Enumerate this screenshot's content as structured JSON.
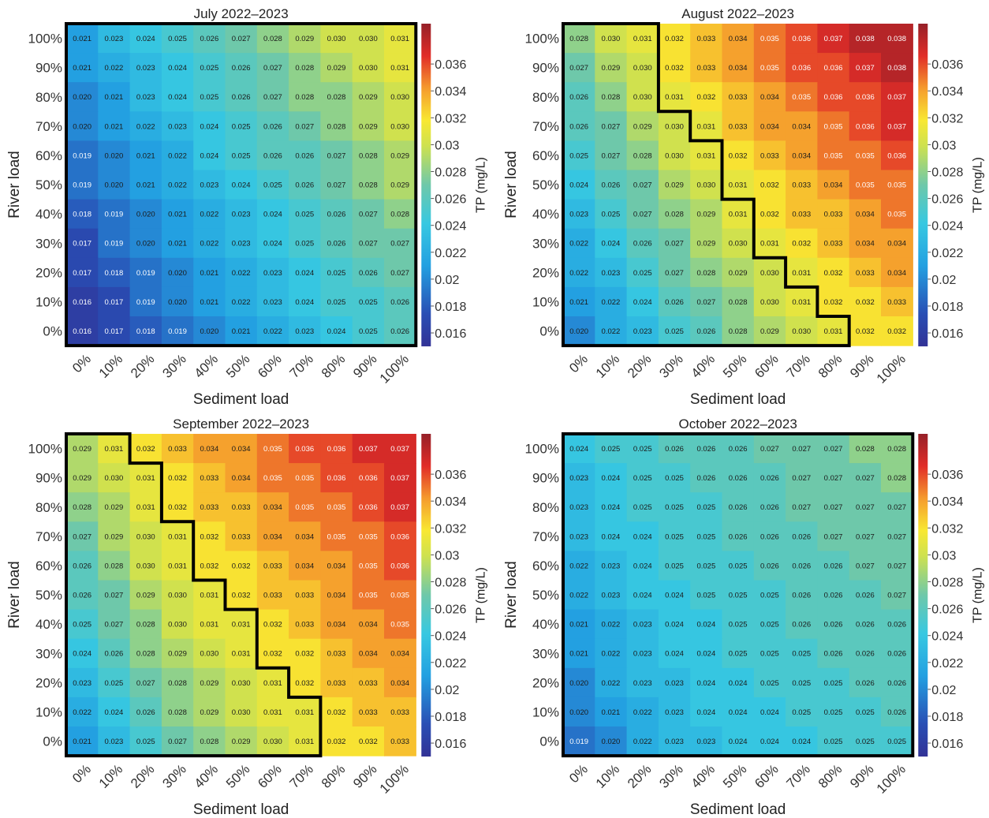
{
  "figure": {
    "colormap": "jet"
  },
  "chart_data": [
    {
      "type": "heatmap",
      "title": "July 2022–2023",
      "xlabel": "Sediment load",
      "ylabel": "River load",
      "colorbar_label": "TP (mg/L)",
      "colorbar_ticks": [
        "0.036",
        "0.034",
        "0.032",
        "0.03",
        "0.028",
        "0.026",
        "0.024",
        "0.022",
        "0.02",
        "0.018",
        "0.016"
      ],
      "colorbar_range": [
        0.015,
        0.039
      ],
      "x": [
        "0%",
        "10%",
        "20%",
        "30%",
        "40%",
        "50%",
        "60%",
        "70%",
        "80%",
        "90%",
        "100%"
      ],
      "y": [
        "100%",
        "90%",
        "80%",
        "70%",
        "60%",
        "50%",
        "40%",
        "30%",
        "20%",
        "10%",
        "0%"
      ],
      "values": [
        [
          "0.021",
          "0.023",
          "0.024",
          "0.025",
          "0.026",
          "0.027",
          "0.028",
          "0.029",
          "0.030",
          "0.030",
          "0.031"
        ],
        [
          "0.021",
          "0.022",
          "0.023",
          "0.024",
          "0.025",
          "0.026",
          "0.027",
          "0.028",
          "0.029",
          "0.030",
          "0.031"
        ],
        [
          "0.020",
          "0.021",
          "0.023",
          "0.024",
          "0.025",
          "0.026",
          "0.027",
          "0.028",
          "0.028",
          "0.029",
          "0.030"
        ],
        [
          "0.020",
          "0.021",
          "0.022",
          "0.023",
          "0.024",
          "0.025",
          "0.026",
          "0.027",
          "0.028",
          "0.029",
          "0.030"
        ],
        [
          "0.019",
          "0.020",
          "0.021",
          "0.022",
          "0.024",
          "0.025",
          "0.026",
          "0.026",
          "0.027",
          "0.028",
          "0.029"
        ],
        [
          "0.019",
          "0.020",
          "0.021",
          "0.022",
          "0.023",
          "0.024",
          "0.025",
          "0.026",
          "0.027",
          "0.028",
          "0.029"
        ],
        [
          "0.018",
          "0.019",
          "0.020",
          "0.021",
          "0.022",
          "0.023",
          "0.024",
          "0.025",
          "0.026",
          "0.027",
          "0.028"
        ],
        [
          "0.017",
          "0.019",
          "0.020",
          "0.021",
          "0.022",
          "0.023",
          "0.024",
          "0.025",
          "0.026",
          "0.027",
          "0.027"
        ],
        [
          "0.017",
          "0.018",
          "0.019",
          "0.020",
          "0.021",
          "0.022",
          "0.023",
          "0.024",
          "0.025",
          "0.026",
          "0.027"
        ],
        [
          "0.016",
          "0.017",
          "0.019",
          "0.020",
          "0.021",
          "0.022",
          "0.023",
          "0.024",
          "0.025",
          "0.025",
          "0.026"
        ],
        [
          "0.016",
          "0.017",
          "0.018",
          "0.019",
          "0.020",
          "0.021",
          "0.022",
          "0.023",
          "0.024",
          "0.025",
          "0.026"
        ]
      ],
      "outlined_columns_per_row": [
        11,
        11,
        11,
        11,
        11,
        11,
        11,
        11,
        11,
        11,
        11
      ]
    },
    {
      "type": "heatmap",
      "title": "August 2022–2023",
      "xlabel": "Sediment load",
      "ylabel": "River load",
      "colorbar_label": "TP (mg/L)",
      "colorbar_ticks": [
        "0.036",
        "0.034",
        "0.032",
        "0.03",
        "0.028",
        "0.026",
        "0.024",
        "0.022",
        "0.02",
        "0.018",
        "0.016"
      ],
      "colorbar_range": [
        0.015,
        0.039
      ],
      "x": [
        "0%",
        "10%",
        "20%",
        "30%",
        "40%",
        "50%",
        "60%",
        "70%",
        "80%",
        "90%",
        "100%"
      ],
      "y": [
        "100%",
        "90%",
        "80%",
        "70%",
        "60%",
        "50%",
        "40%",
        "30%",
        "20%",
        "10%",
        "0%"
      ],
      "values": [
        [
          "0.028",
          "0.030",
          "0.031",
          "0.032",
          "0.033",
          "0.034",
          "0.035",
          "0.036",
          "0.037",
          "0.038",
          "0.038"
        ],
        [
          "0.027",
          "0.029",
          "0.030",
          "0.032",
          "0.033",
          "0.034",
          "0.035",
          "0.036",
          "0.036",
          "0.037",
          "0.038"
        ],
        [
          "0.026",
          "0.028",
          "0.030",
          "0.031",
          "0.032",
          "0.033",
          "0.034",
          "0.035",
          "0.036",
          "0.036",
          "0.037"
        ],
        [
          "0.026",
          "0.027",
          "0.029",
          "0.030",
          "0.031",
          "0.033",
          "0.034",
          "0.034",
          "0.035",
          "0.036",
          "0.037"
        ],
        [
          "0.025",
          "0.027",
          "0.028",
          "0.030",
          "0.031",
          "0.032",
          "0.033",
          "0.034",
          "0.035",
          "0.035",
          "0.036"
        ],
        [
          "0.024",
          "0.026",
          "0.027",
          "0.029",
          "0.030",
          "0.031",
          "0.032",
          "0.033",
          "0.034",
          "0.035",
          "0.035"
        ],
        [
          "0.023",
          "0.025",
          "0.027",
          "0.028",
          "0.029",
          "0.031",
          "0.032",
          "0.033",
          "0.033",
          "0.034",
          "0.035"
        ],
        [
          "0.022",
          "0.024",
          "0.026",
          "0.027",
          "0.029",
          "0.030",
          "0.031",
          "0.032",
          "0.033",
          "0.034",
          "0.034"
        ],
        [
          "0.022",
          "0.023",
          "0.025",
          "0.027",
          "0.028",
          "0.029",
          "0.030",
          "0.031",
          "0.032",
          "0.033",
          "0.034"
        ],
        [
          "0.021",
          "0.022",
          "0.024",
          "0.026",
          "0.027",
          "0.028",
          "0.030",
          "0.031",
          "0.032",
          "0.032",
          "0.033"
        ],
        [
          "0.020",
          "0.022",
          "0.023",
          "0.025",
          "0.026",
          "0.028",
          "0.029",
          "0.030",
          "0.031",
          "0.032",
          "0.032"
        ]
      ],
      "outlined_columns_per_row": [
        3,
        3,
        3,
        4,
        5,
        5,
        6,
        6,
        7,
        8,
        9
      ]
    },
    {
      "type": "heatmap",
      "title": "September 2022–2023",
      "xlabel": "Sediment load",
      "ylabel": "River load",
      "colorbar_label": "TP (mg/L)",
      "colorbar_ticks": [
        "0.036",
        "0.034",
        "0.032",
        "0.03",
        "0.028",
        "0.026",
        "0.024",
        "0.022",
        "0.02",
        "0.018",
        "0.016"
      ],
      "colorbar_range": [
        0.015,
        0.039
      ],
      "x": [
        "0%",
        "10%",
        "20%",
        "30%",
        "40%",
        "50%",
        "60%",
        "70%",
        "80%",
        "90%",
        "100%"
      ],
      "y": [
        "100%",
        "90%",
        "80%",
        "70%",
        "60%",
        "50%",
        "40%",
        "30%",
        "20%",
        "10%",
        "0%"
      ],
      "values": [
        [
          "0.029",
          "0.031",
          "0.032",
          "0.033",
          "0.034",
          "0.034",
          "0.035",
          "0.036",
          "0.036",
          "0.037",
          "0.037"
        ],
        [
          "0.029",
          "0.030",
          "0.031",
          "0.032",
          "0.033",
          "0.034",
          "0.035",
          "0.035",
          "0.036",
          "0.036",
          "0.037"
        ],
        [
          "0.028",
          "0.029",
          "0.031",
          "0.032",
          "0.033",
          "0.033",
          "0.034",
          "0.035",
          "0.035",
          "0.036",
          "0.037"
        ],
        [
          "0.027",
          "0.029",
          "0.030",
          "0.031",
          "0.032",
          "0.033",
          "0.034",
          "0.034",
          "0.035",
          "0.035",
          "0.036"
        ],
        [
          "0.026",
          "0.028",
          "0.030",
          "0.031",
          "0.032",
          "0.032",
          "0.033",
          "0.034",
          "0.034",
          "0.035",
          "0.036"
        ],
        [
          "0.026",
          "0.027",
          "0.029",
          "0.030",
          "0.031",
          "0.032",
          "0.033",
          "0.033",
          "0.034",
          "0.035",
          "0.035"
        ],
        [
          "0.025",
          "0.027",
          "0.028",
          "0.030",
          "0.031",
          "0.031",
          "0.032",
          "0.033",
          "0.034",
          "0.034",
          "0.035"
        ],
        [
          "0.024",
          "0.026",
          "0.028",
          "0.029",
          "0.030",
          "0.031",
          "0.032",
          "0.032",
          "0.033",
          "0.034",
          "0.034"
        ],
        [
          "0.023",
          "0.025",
          "0.027",
          "0.028",
          "0.029",
          "0.030",
          "0.031",
          "0.032",
          "0.033",
          "0.033",
          "0.034"
        ],
        [
          "0.022",
          "0.024",
          "0.026",
          "0.028",
          "0.029",
          "0.030",
          "0.031",
          "0.031",
          "0.032",
          "0.033",
          "0.033"
        ],
        [
          "0.021",
          "0.023",
          "0.025",
          "0.027",
          "0.028",
          "0.029",
          "0.030",
          "0.031",
          "0.032",
          "0.032",
          "0.033"
        ]
      ],
      "outlined_columns_per_row": [
        2,
        3,
        3,
        4,
        4,
        5,
        6,
        6,
        7,
        8,
        8
      ]
    },
    {
      "type": "heatmap",
      "title": "October 2022–2023",
      "xlabel": "Sediment load",
      "ylabel": "River load",
      "colorbar_label": "TP (mg/L)",
      "colorbar_ticks": [
        "0.036",
        "0.034",
        "0.032",
        "0.03",
        "0.028",
        "0.026",
        "0.024",
        "0.022",
        "0.02",
        "0.018",
        "0.016"
      ],
      "colorbar_range": [
        0.015,
        0.039
      ],
      "x": [
        "0%",
        "10%",
        "20%",
        "30%",
        "40%",
        "50%",
        "60%",
        "70%",
        "80%",
        "90%",
        "100%"
      ],
      "y": [
        "100%",
        "90%",
        "80%",
        "70%",
        "60%",
        "50%",
        "40%",
        "30%",
        "20%",
        "10%",
        "0%"
      ],
      "values": [
        [
          "0.024",
          "0.025",
          "0.025",
          "0.026",
          "0.026",
          "0.026",
          "0.027",
          "0.027",
          "0.027",
          "0.028",
          "0.028"
        ],
        [
          "0.023",
          "0.024",
          "0.025",
          "0.025",
          "0.026",
          "0.026",
          "0.026",
          "0.027",
          "0.027",
          "0.027",
          "0.028"
        ],
        [
          "0.023",
          "0.024",
          "0.025",
          "0.025",
          "0.025",
          "0.026",
          "0.026",
          "0.027",
          "0.027",
          "0.027",
          "0.027"
        ],
        [
          "0.023",
          "0.024",
          "0.024",
          "0.025",
          "0.025",
          "0.026",
          "0.026",
          "0.026",
          "0.027",
          "0.027",
          "0.027"
        ],
        [
          "0.022",
          "0.023",
          "0.024",
          "0.025",
          "0.025",
          "0.025",
          "0.026",
          "0.026",
          "0.026",
          "0.027",
          "0.027"
        ],
        [
          "0.022",
          "0.023",
          "0.024",
          "0.024",
          "0.025",
          "0.025",
          "0.025",
          "0.026",
          "0.026",
          "0.026",
          "0.027"
        ],
        [
          "0.021",
          "0.022",
          "0.023",
          "0.024",
          "0.024",
          "0.025",
          "0.025",
          "0.026",
          "0.026",
          "0.026",
          "0.026"
        ],
        [
          "0.021",
          "0.022",
          "0.023",
          "0.024",
          "0.024",
          "0.025",
          "0.025",
          "0.025",
          "0.026",
          "0.026",
          "0.026"
        ],
        [
          "0.020",
          "0.022",
          "0.023",
          "0.023",
          "0.024",
          "0.024",
          "0.025",
          "0.025",
          "0.025",
          "0.026",
          "0.026"
        ],
        [
          "0.020",
          "0.021",
          "0.022",
          "0.023",
          "0.024",
          "0.024",
          "0.024",
          "0.025",
          "0.025",
          "0.025",
          "0.026"
        ],
        [
          "0.019",
          "0.020",
          "0.022",
          "0.023",
          "0.023",
          "0.024",
          "0.024",
          "0.024",
          "0.025",
          "0.025",
          "0.025"
        ]
      ],
      "outlined_columns_per_row": [
        11,
        11,
        11,
        11,
        11,
        11,
        11,
        11,
        11,
        11,
        11
      ]
    }
  ]
}
